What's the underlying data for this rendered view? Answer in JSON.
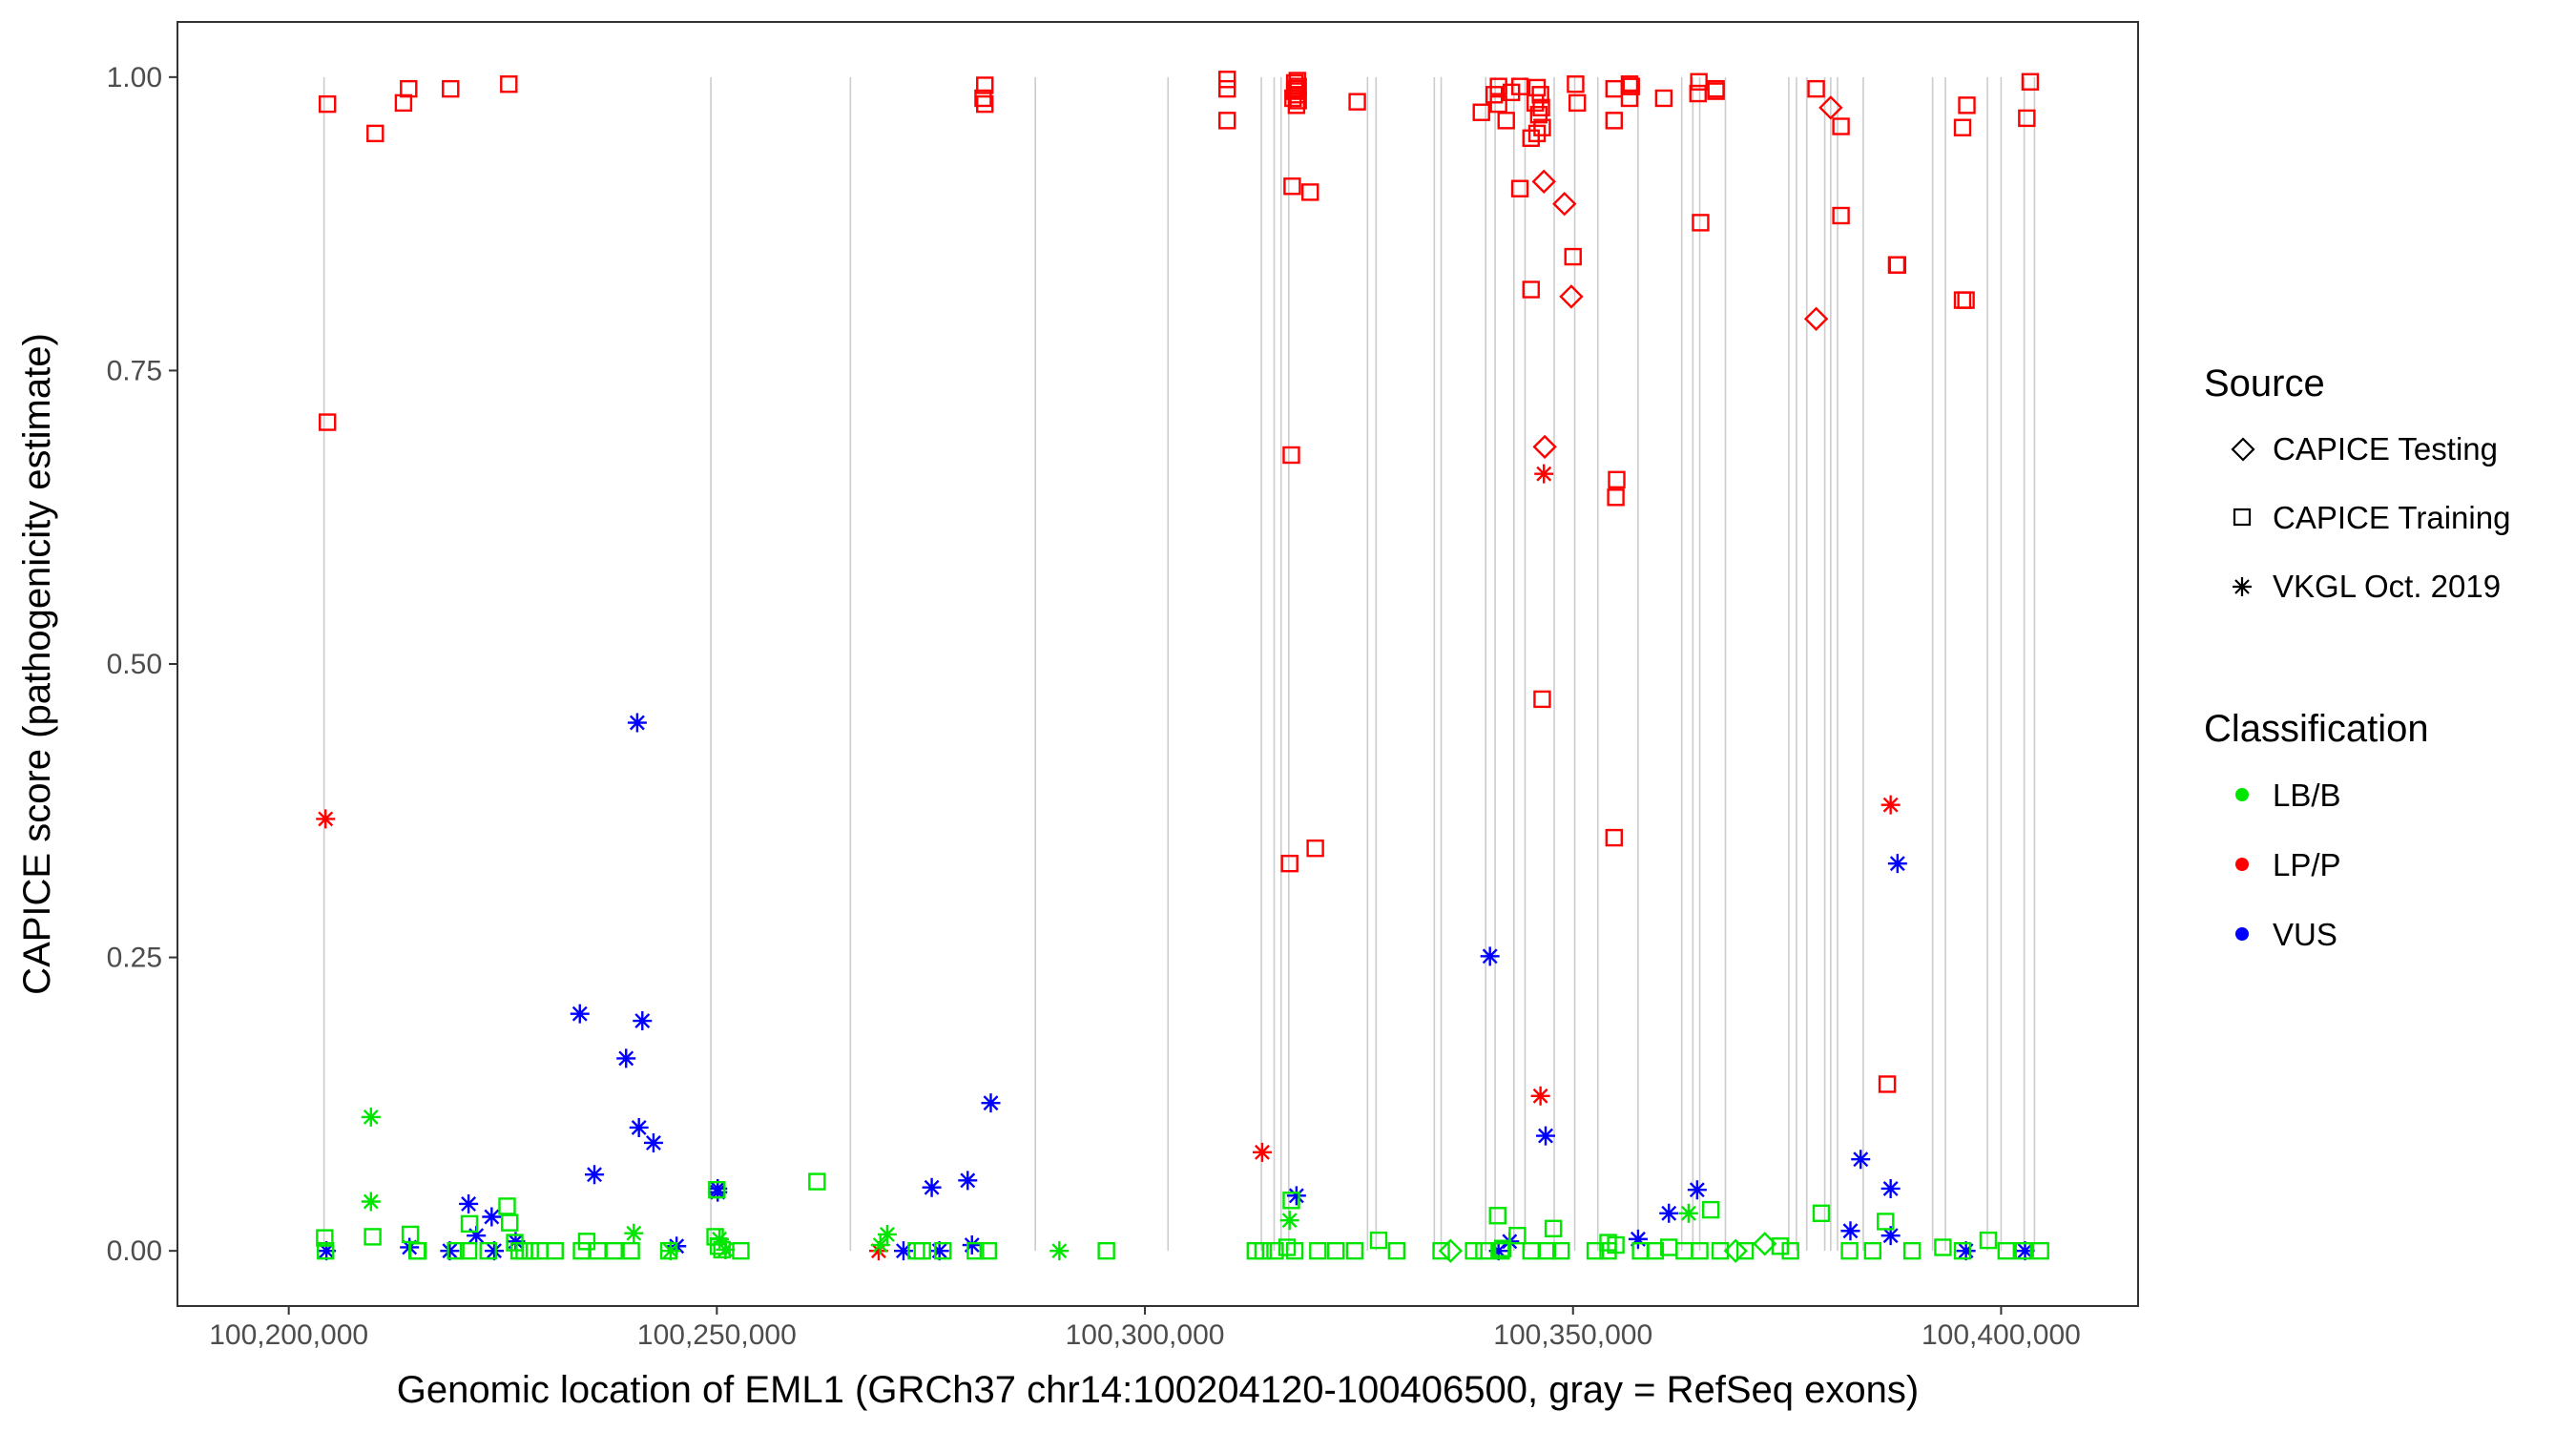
{
  "chart_data": {
    "type": "scatter",
    "title": "",
    "xlabel": "Genomic location of EML1 (GRCh37 chr14:100204120-100406500, gray = RefSeq exons)",
    "ylabel": "CAPICE score (pathogenicity estimate)",
    "xlim": [
      100187000,
      100416000
    ],
    "ylim": [
      -0.047,
      1.047
    ],
    "x_ticks": [
      100200000,
      100250000,
      100300000,
      100350000,
      100400000
    ],
    "x_tick_labels": [
      "100,200,000",
      "100,250,000",
      "100,300,000",
      "100,350,000",
      "100,400,000"
    ],
    "y_ticks": [
      0,
      0.25,
      0.5,
      0.75,
      1
    ],
    "y_tick_labels": [
      "0.00",
      "0.25",
      "0.50",
      "0.75",
      "1.00"
    ],
    "exon_lines": [
      100204120,
      100249300,
      100265600,
      100287200,
      100302700,
      100313600,
      100315100,
      100315900,
      100316800,
      100326000,
      100327000,
      100333800,
      100334600,
      100339800,
      100340900,
      100343100,
      100344400,
      100347800,
      100350200,
      100352900,
      100357600,
      100362700,
      100364000,
      100364800,
      100367800,
      100375200,
      100376100,
      100377300,
      100379400,
      100380100,
      100380900,
      100383900,
      100392000,
      100393500,
      100398400,
      100400000,
      100402700,
      100403900
    ],
    "legend": {
      "source_title": "Source",
      "source_items": [
        {
          "label": "CAPICE Testing",
          "shape": "diamond"
        },
        {
          "label": "CAPICE Training",
          "shape": "square"
        },
        {
          "label": "VKGL Oct. 2019",
          "shape": "star"
        }
      ],
      "class_title": "Classification",
      "class_items": [
        {
          "label": "LB/B",
          "color": "#00e600"
        },
        {
          "label": "LP/P",
          "color": "#ff0000"
        },
        {
          "label": "VUS",
          "color": "#0000ff"
        }
      ]
    },
    "series": [
      {
        "name": "CAPICE Training / LP/P",
        "shape": "square",
        "color": "#ff0000",
        "x": [
          100204520,
          100204520,
          100210100,
          100213400,
          100214000,
          100218900,
          100225700,
          100281100,
          100281300,
          100281300,
          100309600,
          100309600,
          100309600,
          100317300,
          100317500,
          100317500,
          100317700,
          100317700,
          100317800,
          100317800,
          100317900,
          100317900,
          100317200,
          100319300,
          100324800,
          100339300,
          100340800,
          100341300,
          100341300,
          100342200,
          100342800,
          100343800,
          100343800,
          100345100,
          100345600,
          100345800,
          100345800,
          100346000,
          100346200,
          100346400,
          100346300,
          100350300,
          100350500,
          100350000,
          100354800,
          100354800,
          100356600,
          100356600,
          100356800,
          100360600,
          100364600,
          100364700,
          100364900,
          100366700,
          100366700,
          100378400,
          100381300,
          100381300,
          100386700,
          100387800,
          100387900,
          100396000,
          100395500,
          100395500,
          100395900,
          100403400,
          100403000,
          100317100,
          100316900,
          100319900,
          100345100,
          100346400,
          100355100,
          100355000,
          100354800
        ],
        "y": [
          0.977,
          0.706,
          0.952,
          0.978,
          0.99,
          0.99,
          0.994,
          0.982,
          0.993,
          0.977,
          0.998,
          0.99,
          0.963,
          0.982,
          0.988,
          0.995,
          0.976,
          0.99,
          0.985,
          0.997,
          0.98,
          0.992,
          0.907,
          0.902,
          0.979,
          0.97,
          0.985,
          0.992,
          0.977,
          0.963,
          0.987,
          0.905,
          0.992,
          0.948,
          0.978,
          0.991,
          0.952,
          0.968,
          0.985,
          0.957,
          0.974,
          0.994,
          0.978,
          0.847,
          0.963,
          0.99,
          0.982,
          0.994,
          0.992,
          0.982,
          0.986,
          0.996,
          0.876,
          0.99,
          0.988,
          0.99,
          0.958,
          0.882,
          0.142,
          0.84,
          0.84,
          0.976,
          0.957,
          0.81,
          0.81,
          0.996,
          0.965,
          0.678,
          0.33,
          0.343,
          0.819,
          0.47,
          0.657,
          0.642,
          0.352
        ]
      },
      {
        "name": "CAPICE Testing / LP/P",
        "shape": "diamond",
        "color": "#ff0000",
        "x": [
          100346600,
          100349000,
          100349800,
          100346700,
          100378400,
          100380100
        ],
        "y": [
          0.911,
          0.892,
          0.813,
          0.685,
          0.794,
          0.974
        ]
      },
      {
        "name": "VKGL Oct. 2019 / LP/P",
        "shape": "star",
        "color": "#ff0000",
        "x": [
          100204300,
          100313700,
          100346200,
          100346600,
          100387100,
          100268900
        ],
        "y": [
          0.368,
          0.084,
          0.132,
          0.662,
          0.38,
          0.0
        ]
      },
      {
        "name": "VKGL Oct. 2019 / VUS",
        "shape": "star",
        "color": "#0000ff",
        "x": [
          100204400,
          100221000,
          100221900,
          100223700,
          100235700,
          100239400,
          100240700,
          100241300,
          100242600,
          100240900,
          100250100,
          100250100,
          100275100,
          100279300,
          100282000,
          100342600,
          100317700,
          100346800,
          100361200,
          100364500,
          100382400,
          100383600,
          100387100,
          100387900,
          100340300,
          100234000,
          100245300,
          100226500,
          100214100,
          100218800,
          100224000,
          100271800,
          100276000,
          100279800,
          100341300,
          100357600,
          100387100,
          100395900,
          100402800
        ],
        "y": [
          0.0,
          0.04,
          0.013,
          0.029,
          0.065,
          0.164,
          0.45,
          0.196,
          0.092,
          0.105,
          0.053,
          0.05,
          0.054,
          0.06,
          0.126,
          0.008,
          0.047,
          0.098,
          0.032,
          0.052,
          0.017,
          0.078,
          0.053,
          0.33,
          0.251,
          0.202,
          0.004,
          0.008,
          0.003,
          0.0,
          0.0,
          0.0,
          0.0,
          0.005,
          0.0,
          0.01,
          0.013,
          0.0,
          0.0
        ]
      },
      {
        "name": "VKGL Oct. 2019 / LB/B",
        "shape": "star",
        "color": "#00e600",
        "x": [
          100209600,
          100209600,
          100240300,
          100250300,
          100269900,
          100290000,
          100316900,
          100363500,
          100244600,
          100251000,
          100269100
        ],
        "y": [
          0.114,
          0.042,
          0.015,
          0.01,
          0.014,
          0.0,
          0.026,
          0.032,
          0.0,
          0.001,
          0.005
        ]
      },
      {
        "name": "CAPICE Training / LB/B",
        "shape": "square",
        "color": "#00e600",
        "x": [
          100204200,
          100204300,
          100209800,
          100214200,
          100215000,
          100219500,
          100221100,
          100223300,
          100225500,
          100225800,
          100226900,
          100228200,
          100229300,
          100234200,
          100234800,
          100238000,
          100240000,
          100244400,
          100250000,
          100250600,
          100252800,
          100261700,
          100273300,
          100274000,
          100276400,
          100280200,
          100281700,
          100295500,
          100312900,
          100313800,
          100315200,
          100316600,
          100317100,
          100317500,
          100320200,
          100322300,
          100324500,
          100327300,
          100329400,
          100334600,
          100338400,
          100339600,
          100341200,
          100341600,
          100343500,
          100345100,
          100347000,
          100347700,
          100352600,
          100355000,
          100357900,
          100359600,
          100361200,
          100364800,
          100366100,
          100367200,
          100370100,
          100374200,
          100375400,
          100379000,
          100382300,
          100385000,
          100386500,
          100389600,
          100393200,
          100395500,
          100398500,
          100400600,
          100402600,
          100404600,
          100226400,
          100227500,
          100221000,
          100215100,
          100231100,
          100236100,
          100250200,
          100249800,
          100348600,
          100341800,
          100363000,
          100354100,
          100354100
        ],
        "y": [
          0.011,
          0.0,
          0.012,
          0.014,
          0.0,
          0.0,
          0.023,
          0.0,
          0.038,
          0.024,
          0.0,
          0.0,
          0.0,
          0.0,
          0.008,
          0.0,
          0.0,
          0.0,
          0.052,
          0.001,
          0.0,
          0.059,
          0.0,
          0.0,
          0.0,
          0.0,
          0.0,
          0.0,
          0.0,
          0.0,
          0.0,
          0.003,
          0.043,
          0.0,
          0.0,
          0.0,
          0.0,
          0.009,
          0.0,
          0.0,
          0.0,
          0.0,
          0.03,
          0.0,
          0.013,
          0.0,
          0.0,
          0.019,
          0.0,
          0.005,
          0.0,
          0.0,
          0.003,
          0.0,
          0.035,
          0.0,
          0.0,
          0.004,
          0.0,
          0.032,
          0.0,
          0.0,
          0.025,
          0.0,
          0.003,
          0.0,
          0.009,
          0.0,
          0.0,
          0.0,
          0.007,
          0.0,
          0.0,
          0.0,
          0.0,
          0.0,
          0.004,
          0.012,
          0.0,
          0.002,
          0.0,
          0.0,
          0.007
        ]
      },
      {
        "name": "CAPICE Testing / LB/B",
        "shape": "diamond",
        "color": "#00e600",
        "x": [
          100335700,
          100369000,
          100372400
        ],
        "y": [
          0.0,
          0.0,
          0.006
        ]
      }
    ]
  }
}
